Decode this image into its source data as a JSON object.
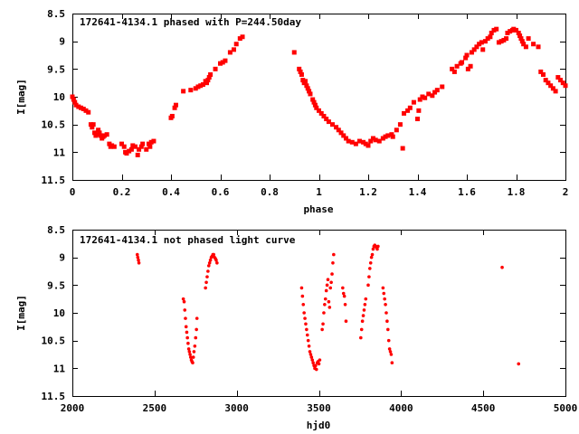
{
  "chart_data": [
    {
      "type": "scatter",
      "title": "172641-4134.1 phased with P=244.50day",
      "xlabel": "phase",
      "ylabel": "I[mag]",
      "xlim": [
        0,
        2
      ],
      "ylim": [
        11.5,
        8.5
      ],
      "y_inverted": true,
      "grid": false,
      "color": "#ff0000",
      "marker": "square",
      "xticks": [
        "0",
        "0.2",
        "0.4",
        "0.6",
        "0.8",
        "1",
        "1.2",
        "1.4",
        "1.6",
        "1.8",
        "2"
      ],
      "yticks": [
        "8.5",
        "9",
        "9.5",
        "10",
        "10.5",
        "11",
        "11.5"
      ],
      "points": [
        [
          0.0,
          10.0
        ],
        [
          0.005,
          10.05
        ],
        [
          0.01,
          10.1
        ],
        [
          0.015,
          10.15
        ],
        [
          0.025,
          10.18
        ],
        [
          0.035,
          10.2
        ],
        [
          0.045,
          10.22
        ],
        [
          0.055,
          10.25
        ],
        [
          0.065,
          10.28
        ],
        [
          0.075,
          10.5
        ],
        [
          0.08,
          10.55
        ],
        [
          0.085,
          10.5
        ],
        [
          0.09,
          10.65
        ],
        [
          0.095,
          10.7
        ],
        [
          0.1,
          10.68
        ],
        [
          0.105,
          10.6
        ],
        [
          0.11,
          10.65
        ],
        [
          0.115,
          10.7
        ],
        [
          0.12,
          10.75
        ],
        [
          0.125,
          10.72
        ],
        [
          0.13,
          10.7
        ],
        [
          0.14,
          10.68
        ],
        [
          0.15,
          10.85
        ],
        [
          0.155,
          10.9
        ],
        [
          0.16,
          10.88
        ],
        [
          0.17,
          10.9
        ],
        [
          0.2,
          10.85
        ],
        [
          0.21,
          10.9
        ],
        [
          0.215,
          11.0
        ],
        [
          0.22,
          11.02
        ],
        [
          0.23,
          10.98
        ],
        [
          0.24,
          10.95
        ],
        [
          0.245,
          10.88
        ],
        [
          0.255,
          10.9
        ],
        [
          0.265,
          11.05
        ],
        [
          0.27,
          10.95
        ],
        [
          0.28,
          10.9
        ],
        [
          0.285,
          10.85
        ],
        [
          0.3,
          10.95
        ],
        [
          0.31,
          10.85
        ],
        [
          0.315,
          10.9
        ],
        [
          0.32,
          10.82
        ],
        [
          0.33,
          10.8
        ],
        [
          0.4,
          10.38
        ],
        [
          0.405,
          10.35
        ],
        [
          0.415,
          10.2
        ],
        [
          0.42,
          10.15
        ],
        [
          0.45,
          9.9
        ],
        [
          0.48,
          9.88
        ],
        [
          0.5,
          9.85
        ],
        [
          0.51,
          9.82
        ],
        [
          0.52,
          9.8
        ],
        [
          0.53,
          9.78
        ],
        [
          0.54,
          9.72
        ],
        [
          0.545,
          9.75
        ],
        [
          0.55,
          9.7
        ],
        [
          0.555,
          9.65
        ],
        [
          0.56,
          9.6
        ],
        [
          0.58,
          9.5
        ],
        [
          0.6,
          9.4
        ],
        [
          0.61,
          9.38
        ],
        [
          0.62,
          9.35
        ],
        [
          0.64,
          9.2
        ],
        [
          0.655,
          9.15
        ],
        [
          0.665,
          9.05
        ],
        [
          0.68,
          8.95
        ],
        [
          0.69,
          8.92
        ],
        [
          0.9,
          9.2
        ],
        [
          0.92,
          9.5
        ],
        [
          0.925,
          9.55
        ],
        [
          0.93,
          9.6
        ],
        [
          0.935,
          9.7
        ],
        [
          0.94,
          9.75
        ],
        [
          0.945,
          9.72
        ],
        [
          0.95,
          9.8
        ],
        [
          0.955,
          9.85
        ],
        [
          0.96,
          9.9
        ],
        [
          0.965,
          9.95
        ],
        [
          0.975,
          10.05
        ],
        [
          0.98,
          10.1
        ],
        [
          0.985,
          10.15
        ],
        [
          0.99,
          10.2
        ],
        [
          1.0,
          10.25
        ],
        [
          1.01,
          10.3
        ],
        [
          1.02,
          10.35
        ],
        [
          1.03,
          10.4
        ],
        [
          1.04,
          10.45
        ],
        [
          1.055,
          10.5
        ],
        [
          1.07,
          10.55
        ],
        [
          1.08,
          10.6
        ],
        [
          1.09,
          10.65
        ],
        [
          1.1,
          10.7
        ],
        [
          1.11,
          10.75
        ],
        [
          1.12,
          10.8
        ],
        [
          1.135,
          10.82
        ],
        [
          1.15,
          10.85
        ],
        [
          1.165,
          10.8
        ],
        [
          1.18,
          10.82
        ],
        [
          1.19,
          10.85
        ],
        [
          1.2,
          10.88
        ],
        [
          1.21,
          10.8
        ],
        [
          1.22,
          10.75
        ],
        [
          1.23,
          10.78
        ],
        [
          1.245,
          10.8
        ],
        [
          1.26,
          10.75
        ],
        [
          1.27,
          10.72
        ],
        [
          1.28,
          10.7
        ],
        [
          1.295,
          10.68
        ],
        [
          1.3,
          10.72
        ],
        [
          1.315,
          10.6
        ],
        [
          1.33,
          10.5
        ],
        [
          1.34,
          10.93
        ],
        [
          1.345,
          10.3
        ],
        [
          1.36,
          10.25
        ],
        [
          1.37,
          10.2
        ],
        [
          1.385,
          10.1
        ],
        [
          1.4,
          10.4
        ],
        [
          1.405,
          10.25
        ],
        [
          1.41,
          10.05
        ],
        [
          1.42,
          10.0
        ],
        [
          1.43,
          10.02
        ],
        [
          1.445,
          9.95
        ],
        [
          1.46,
          9.98
        ],
        [
          1.47,
          9.92
        ],
        [
          1.48,
          9.88
        ],
        [
          1.5,
          9.82
        ],
        [
          1.54,
          9.5
        ],
        [
          1.55,
          9.55
        ],
        [
          1.56,
          9.45
        ],
        [
          1.575,
          9.4
        ],
        [
          1.58,
          9.38
        ],
        [
          1.595,
          9.3
        ],
        [
          1.6,
          9.25
        ],
        [
          1.605,
          9.5
        ],
        [
          1.615,
          9.45
        ],
        [
          1.62,
          9.2
        ],
        [
          1.63,
          9.15
        ],
        [
          1.64,
          9.1
        ],
        [
          1.65,
          9.05
        ],
        [
          1.66,
          9.02
        ],
        [
          1.665,
          9.15
        ],
        [
          1.675,
          9.0
        ],
        [
          1.685,
          8.95
        ],
        [
          1.695,
          8.92
        ],
        [
          1.7,
          8.85
        ],
        [
          1.71,
          8.8
        ],
        [
          1.72,
          8.78
        ],
        [
          1.73,
          9.02
        ],
        [
          1.74,
          9.0
        ],
        [
          1.75,
          8.98
        ],
        [
          1.76,
          8.95
        ],
        [
          1.765,
          8.85
        ],
        [
          1.775,
          8.82
        ],
        [
          1.785,
          8.8
        ],
        [
          1.79,
          8.78
        ],
        [
          1.8,
          8.8
        ],
        [
          1.81,
          8.85
        ],
        [
          1.815,
          8.9
        ],
        [
          1.82,
          8.95
        ],
        [
          1.825,
          9.0
        ],
        [
          1.83,
          9.05
        ],
        [
          1.84,
          9.1
        ],
        [
          1.85,
          8.95
        ],
        [
          1.87,
          9.05
        ],
        [
          1.89,
          9.1
        ],
        [
          1.9,
          9.55
        ],
        [
          1.91,
          9.6
        ],
        [
          1.92,
          9.7
        ],
        [
          1.93,
          9.75
        ],
        [
          1.94,
          9.8
        ],
        [
          1.95,
          9.85
        ],
        [
          1.96,
          9.9
        ],
        [
          1.97,
          9.65
        ],
        [
          1.98,
          9.7
        ],
        [
          1.99,
          9.75
        ],
        [
          2.0,
          9.8
        ]
      ]
    },
    {
      "type": "scatter",
      "title": "172641-4134.1 not phased light curve",
      "xlabel": "hjd0",
      "ylabel": "I[mag]",
      "xlim": [
        2000,
        5000
      ],
      "ylim": [
        11.5,
        8.5
      ],
      "y_inverted": true,
      "grid": false,
      "color": "#ff0000",
      "marker": "dot",
      "xticks": [
        "2000",
        "2500",
        "3000",
        "3500",
        "4000",
        "4500",
        "5000"
      ],
      "yticks": [
        "8.5",
        "9",
        "9.5",
        "10",
        "10.5",
        "11",
        "11.5"
      ],
      "points": [
        [
          2395,
          8.95
        ],
        [
          2398,
          9.0
        ],
        [
          2402,
          9.05
        ],
        [
          2405,
          9.1
        ],
        [
          2675,
          9.75
        ],
        [
          2680,
          9.8
        ],
        [
          2684,
          9.95
        ],
        [
          2688,
          10.1
        ],
        [
          2692,
          10.25
        ],
        [
          2696,
          10.35
        ],
        [
          2700,
          10.45
        ],
        [
          2704,
          10.55
        ],
        [
          2708,
          10.65
        ],
        [
          2712,
          10.7
        ],
        [
          2716,
          10.75
        ],
        [
          2720,
          10.8
        ],
        [
          2724,
          10.85
        ],
        [
          2728,
          10.88
        ],
        [
          2732,
          10.9
        ],
        [
          2736,
          10.8
        ],
        [
          2740,
          10.7
        ],
        [
          2745,
          10.6
        ],
        [
          2750,
          10.45
        ],
        [
          2755,
          10.3
        ],
        [
          2758,
          10.1
        ],
        [
          2810,
          9.55
        ],
        [
          2815,
          9.45
        ],
        [
          2820,
          9.35
        ],
        [
          2825,
          9.25
        ],
        [
          2830,
          9.15
        ],
        [
          2835,
          9.1
        ],
        [
          2840,
          9.05
        ],
        [
          2845,
          9.0
        ],
        [
          2850,
          8.98
        ],
        [
          2855,
          8.95
        ],
        [
          2860,
          8.95
        ],
        [
          2865,
          9.0
        ],
        [
          2870,
          9.02
        ],
        [
          2875,
          9.05
        ],
        [
          2880,
          9.1
        ],
        [
          3395,
          9.55
        ],
        [
          3400,
          9.7
        ],
        [
          3405,
          9.85
        ],
        [
          3410,
          10.0
        ],
        [
          3415,
          10.1
        ],
        [
          3420,
          10.2
        ],
        [
          3425,
          10.3
        ],
        [
          3430,
          10.4
        ],
        [
          3435,
          10.5
        ],
        [
          3440,
          10.6
        ],
        [
          3445,
          10.7
        ],
        [
          3450,
          10.75
        ],
        [
          3455,
          10.8
        ],
        [
          3460,
          10.85
        ],
        [
          3465,
          10.9
        ],
        [
          3470,
          10.95
        ],
        [
          3475,
          11.0
        ],
        [
          3480,
          10.95
        ],
        [
          3485,
          11.02
        ],
        [
          3490,
          10.9
        ],
        [
          3495,
          10.88
        ],
        [
          3500,
          10.92
        ],
        [
          3505,
          10.85
        ],
        [
          3520,
          10.3
        ],
        [
          3525,
          10.2
        ],
        [
          3530,
          10.0
        ],
        [
          3535,
          9.85
        ],
        [
          3540,
          9.75
        ],
        [
          3545,
          9.6
        ],
        [
          3550,
          9.5
        ],
        [
          3555,
          9.4
        ],
        [
          3560,
          9.8
        ],
        [
          3565,
          9.9
        ],
        [
          3570,
          9.55
        ],
        [
          3575,
          9.45
        ],
        [
          3580,
          9.3
        ],
        [
          3585,
          9.1
        ],
        [
          3590,
          8.95
        ],
        [
          3645,
          9.55
        ],
        [
          3650,
          9.65
        ],
        [
          3655,
          9.7
        ],
        [
          3660,
          9.85
        ],
        [
          3665,
          10.15
        ],
        [
          3755,
          10.45
        ],
        [
          3760,
          10.3
        ],
        [
          3765,
          10.15
        ],
        [
          3770,
          10.05
        ],
        [
          3775,
          9.95
        ],
        [
          3780,
          9.85
        ],
        [
          3785,
          9.75
        ],
        [
          3800,
          9.5
        ],
        [
          3805,
          9.35
        ],
        [
          3810,
          9.2
        ],
        [
          3815,
          9.1
        ],
        [
          3820,
          9.0
        ],
        [
          3825,
          8.95
        ],
        [
          3830,
          8.85
        ],
        [
          3835,
          8.8
        ],
        [
          3840,
          8.78
        ],
        [
          3845,
          8.8
        ],
        [
          3850,
          8.82
        ],
        [
          3855,
          8.85
        ],
        [
          3860,
          8.8
        ],
        [
          3890,
          9.55
        ],
        [
          3895,
          9.65
        ],
        [
          3900,
          9.75
        ],
        [
          3905,
          9.85
        ],
        [
          3910,
          10.0
        ],
        [
          3915,
          10.15
        ],
        [
          3920,
          10.3
        ],
        [
          3925,
          10.5
        ],
        [
          3930,
          10.65
        ],
        [
          3935,
          10.7
        ],
        [
          3940,
          10.75
        ],
        [
          3945,
          10.9
        ],
        [
          4615,
          9.18
        ],
        [
          4715,
          10.92
        ]
      ]
    }
  ]
}
